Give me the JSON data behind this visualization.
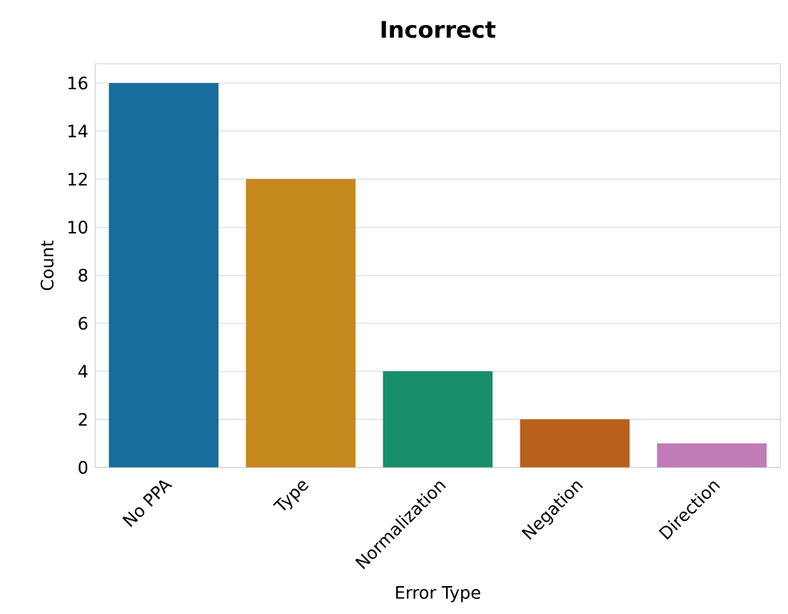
{
  "chart_data": {
    "type": "bar",
    "title": "Incorrect",
    "xlabel": "Error Type",
    "ylabel": "Count",
    "categories": [
      "No PPA",
      "Type",
      "Normalization",
      "Negation",
      "Direction"
    ],
    "values": [
      16,
      12,
      4,
      2,
      1
    ],
    "colors": [
      "#176d9c",
      "#c4881d",
      "#168e6b",
      "#b8611c",
      "#c17bb6"
    ],
    "ylim": [
      0,
      16.8
    ],
    "yticks": [
      0,
      2,
      4,
      6,
      8,
      10,
      12,
      14,
      16
    ],
    "grid": "y"
  }
}
